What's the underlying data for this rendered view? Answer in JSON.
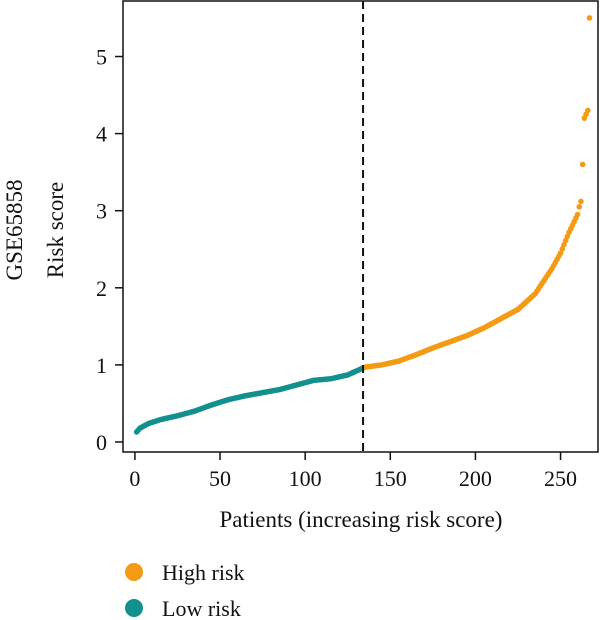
{
  "chart_data": {
    "type": "scatter",
    "ylabel_lines": [
      "GSE65858",
      "Risk score"
    ],
    "xlabel": "Patients (increasing risk score)",
    "xlim": [
      -7,
      272
    ],
    "ylim": [
      -0.13,
      5.72
    ],
    "xticks": [
      0,
      50,
      100,
      150,
      200,
      250
    ],
    "yticks": [
      0,
      1,
      2,
      3,
      4,
      5
    ],
    "cutoff_x": 134,
    "grid": false,
    "legend_position": "bottom-left",
    "series": [
      {
        "name": "Low risk",
        "color": "#12908e",
        "x_start": 1,
        "x_end": 134,
        "curve": [
          [
            1,
            0.13
          ],
          [
            3,
            0.18
          ],
          [
            8,
            0.24
          ],
          [
            15,
            0.29
          ],
          [
            25,
            0.34
          ],
          [
            35,
            0.4
          ],
          [
            45,
            0.48
          ],
          [
            55,
            0.55
          ],
          [
            65,
            0.6
          ],
          [
            75,
            0.64
          ],
          [
            85,
            0.68
          ],
          [
            95,
            0.74
          ],
          [
            105,
            0.8
          ],
          [
            115,
            0.82
          ],
          [
            125,
            0.87
          ],
          [
            134,
            0.96
          ]
        ]
      },
      {
        "name": "High risk",
        "color": "#f39b14",
        "x_start": 135,
        "x_end": 260,
        "curve": [
          [
            135,
            0.97
          ],
          [
            145,
            1.0
          ],
          [
            155,
            1.05
          ],
          [
            165,
            1.13
          ],
          [
            175,
            1.22
          ],
          [
            185,
            1.3
          ],
          [
            195,
            1.38
          ],
          [
            205,
            1.48
          ],
          [
            215,
            1.6
          ],
          [
            225,
            1.72
          ],
          [
            235,
            1.92
          ],
          [
            245,
            2.25
          ],
          [
            250,
            2.45
          ],
          [
            255,
            2.72
          ],
          [
            260,
            2.95
          ]
        ],
        "extra_points": [
          [
            261,
            3.05
          ],
          [
            262,
            3.12
          ],
          [
            263,
            3.6
          ],
          [
            264,
            4.2
          ],
          [
            265,
            4.25
          ],
          [
            266,
            4.3
          ],
          [
            267,
            5.5
          ]
        ]
      }
    ]
  }
}
